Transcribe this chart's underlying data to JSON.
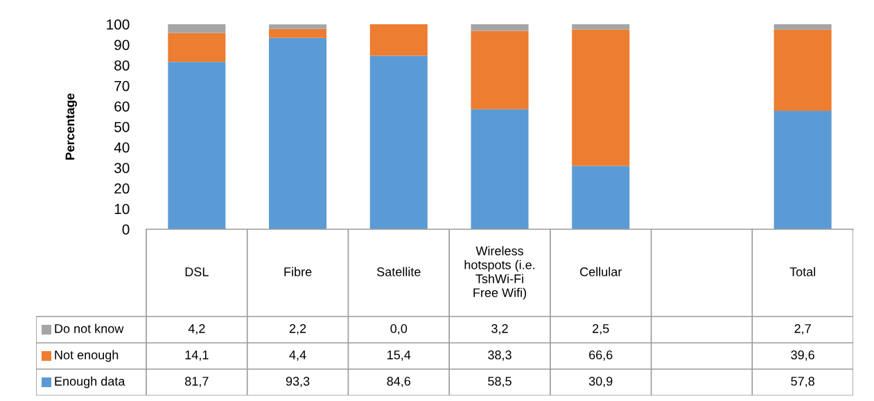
{
  "chart_data": {
    "type": "bar",
    "ylabel": "Percentage",
    "categories": [
      "DSL",
      "Fibre",
      "Satellite",
      "Wireless hotspots (i.e. TshWi-Fi Free Wifi)",
      "Cellular",
      null,
      "Total"
    ],
    "series": [
      {
        "name": "Enough data",
        "color": "#5b9bd5",
        "values": [
          81.7,
          93.3,
          84.6,
          58.5,
          30.9,
          null,
          57.8
        ],
        "value_labels": [
          "81,7",
          "93,3",
          "84,6",
          "58,5",
          "30,9",
          null,
          "57,8"
        ]
      },
      {
        "name": "Not enough",
        "color": "#ed7d31",
        "values": [
          14.1,
          4.4,
          15.4,
          38.3,
          66.6,
          null,
          39.6
        ],
        "value_labels": [
          "14,1",
          "4,4",
          "15,4",
          "38,3",
          "66,6",
          null,
          "39,6"
        ]
      },
      {
        "name": "Do not know",
        "color": "#a5a5a5",
        "values": [
          4.2,
          2.2,
          0.0,
          3.2,
          2.5,
          null,
          2.7
        ],
        "value_labels": [
          "4,2",
          "2,2",
          "0,0",
          "3,2",
          "2,5",
          null,
          "2,7"
        ]
      }
    ],
    "stacked": true,
    "ylim": [
      0,
      100
    ],
    "yticks": [
      0,
      10,
      20,
      30,
      40,
      50,
      60,
      70,
      80,
      90,
      100
    ],
    "legend": "bottom",
    "grid": false
  }
}
